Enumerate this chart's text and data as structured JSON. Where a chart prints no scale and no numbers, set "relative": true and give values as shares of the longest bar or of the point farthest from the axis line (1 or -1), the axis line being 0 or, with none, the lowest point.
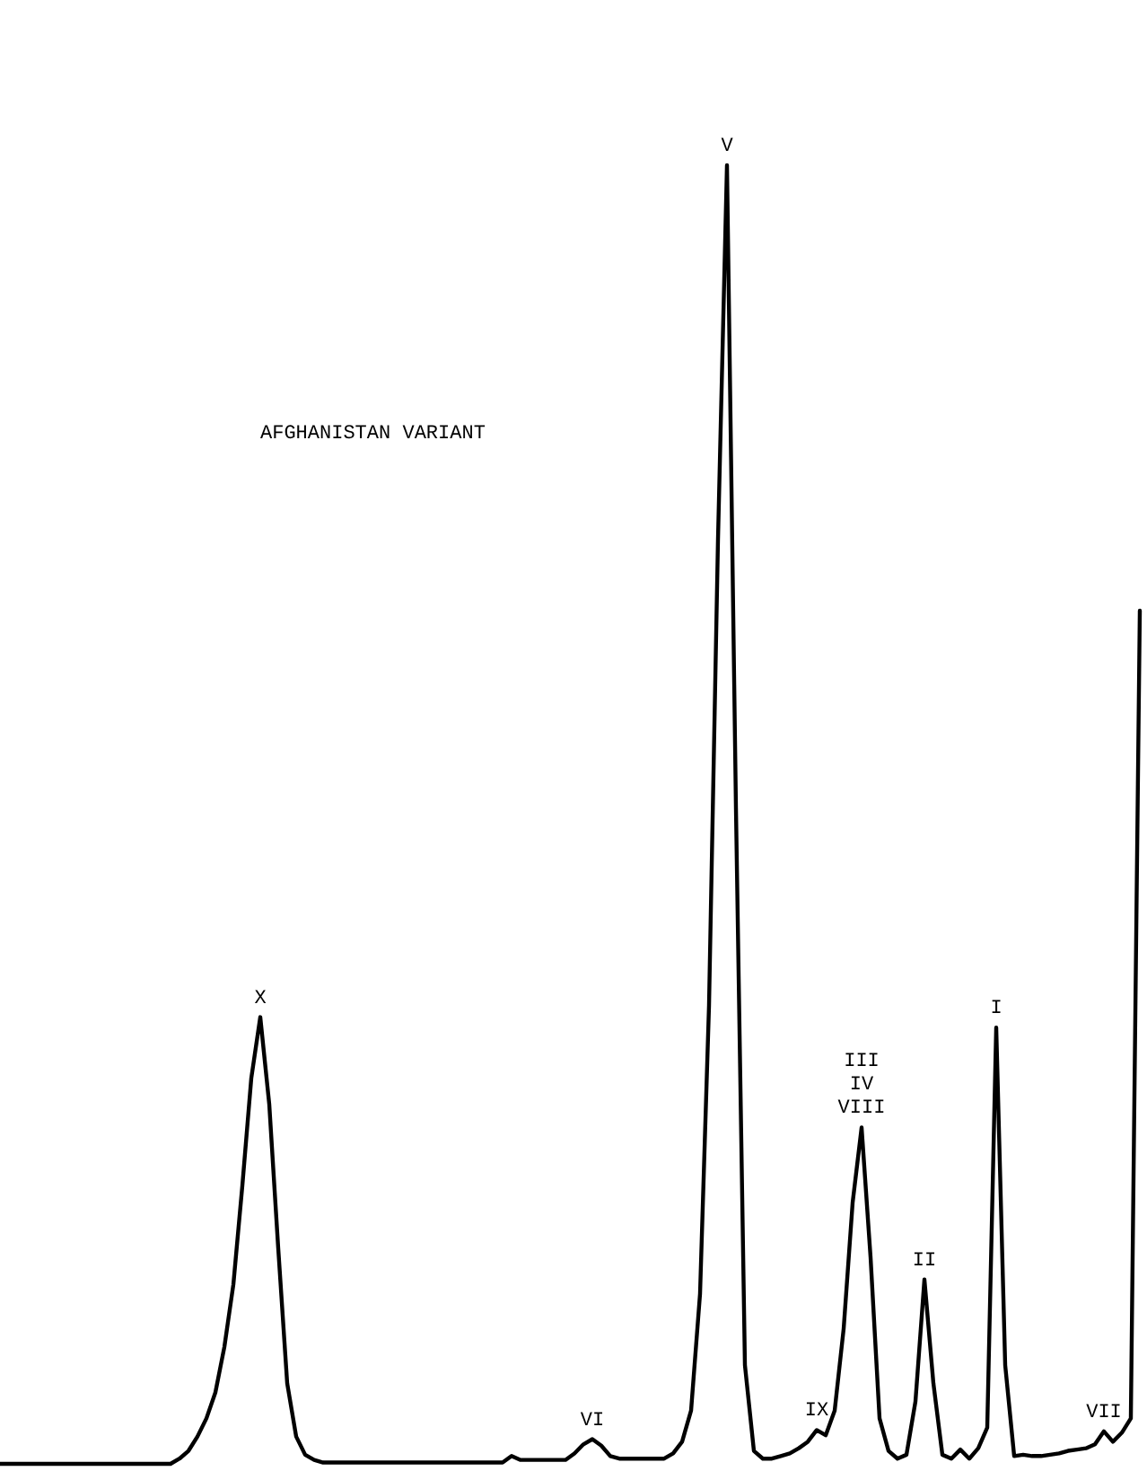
{
  "chart_data": {
    "type": "line",
    "relative": true,
    "title": "AFGHANISTAN VARIANT",
    "marker": "none",
    "line_style": "solid",
    "categories": [
      null,
      null,
      null,
      null,
      null,
      null,
      null,
      null,
      null,
      null,
      null,
      null,
      null,
      null,
      null,
      null,
      null,
      null,
      null,
      null,
      null,
      null,
      null,
      null,
      null,
      null,
      null,
      null,
      null,
      null,
      null,
      null,
      null,
      null,
      null,
      null,
      null,
      null,
      null,
      null,
      null,
      null,
      null,
      null,
      null,
      null,
      null,
      null,
      null,
      null,
      null,
      null,
      null,
      null,
      null,
      null,
      null,
      null,
      null,
      null,
      null,
      null,
      null,
      null,
      null,
      null,
      null,
      null,
      null,
      null,
      null,
      null,
      null,
      null,
      null,
      null,
      null,
      null,
      null,
      null,
      null,
      null,
      null,
      null,
      null,
      null,
      null,
      null,
      null,
      null,
      null,
      null,
      null,
      null,
      null,
      null,
      null,
      null,
      null,
      null,
      null,
      null,
      null,
      null,
      null,
      null,
      null,
      null,
      null,
      null,
      null,
      null,
      null,
      null,
      null,
      null,
      null,
      null,
      null,
      null,
      null,
      null,
      null,
      null,
      null,
      null,
      null,
      null
    ],
    "series": [
      {
        "color": "#000000",
        "values": [
          0,
          0,
          0,
          0,
          0,
          0,
          0,
          0,
          0,
          0,
          0,
          0,
          0,
          0,
          0,
          0,
          0,
          0,
          0,
          0,
          0.004,
          0.01,
          0.021,
          0.035,
          0.055,
          0.09,
          0.138,
          0.214,
          0.297,
          0.344,
          0.277,
          0.166,
          0.062,
          0.021,
          0.007,
          0.003,
          0.001,
          0.001,
          0.001,
          0.001,
          0.001,
          0.001,
          0.001,
          0.001,
          0.001,
          0.001,
          0.001,
          0.001,
          0.001,
          0.001,
          0.001,
          0.001,
          0.001,
          0.001,
          0.001,
          0.001,
          0.001,
          0.006,
          0.003,
          0.003,
          0.003,
          0.003,
          0.003,
          0.003,
          0.008,
          0.015,
          0.019,
          0.014,
          0.006,
          0.004,
          0.004,
          0.004,
          0.004,
          0.004,
          0.004,
          0.008,
          0.017,
          0.041,
          0.131,
          0.353,
          0.712,
          1,
          0.505,
          0.076,
          0.01,
          0.004,
          0.004,
          0.006,
          0.008,
          0.012,
          0.017,
          0.026,
          0.022,
          0.041,
          0.104,
          0.201,
          0.259,
          0.159,
          0.035,
          0.01,
          0.004,
          0.007,
          0.048,
          0.142,
          0.062,
          0.007,
          0.004,
          0.011,
          0.004,
          0.012,
          0.028,
          0.336,
          0.076,
          0.006,
          0.007,
          0.006,
          0.006,
          0.007,
          0.008,
          0.01,
          0.011,
          0.012,
          0.015,
          0.025,
          0.017,
          0.024,
          0.035,
          0.657
        ]
      }
    ],
    "annotations": [
      {
        "text": "X",
        "y": 0.344
      },
      {
        "text": "VI",
        "y": 0.019
      },
      {
        "text": "V",
        "y": 1
      },
      {
        "text": "IX",
        "y": 0.026
      },
      {
        "text": "III\nIV\nVIII",
        "y": 0.259
      },
      {
        "text": "II",
        "y": 0.142
      },
      {
        "text": "I",
        "y": 0.336
      },
      {
        "text": "VII",
        "y": 0.025
      }
    ]
  }
}
